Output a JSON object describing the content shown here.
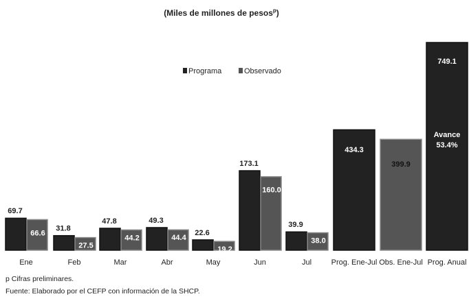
{
  "chart_data": {
    "type": "bar",
    "title": {
      "text": "(Miles de millones de pesos",
      "superscript": "p",
      "close": ")"
    },
    "categories": [
      "Ene",
      "Feb",
      "Mar",
      "Abr",
      "May",
      "Jun",
      "Jul",
      "Prog. Ene-Jul",
      "Obs. Ene-Jul",
      "Prog. Anual"
    ],
    "series": [
      {
        "name": "Programa",
        "color": "#222222",
        "values": [
          69.7,
          31.8,
          47.8,
          49.3,
          22.6,
          173.1,
          39.9,
          434.3,
          null,
          749.1
        ]
      },
      {
        "name": "Observado",
        "color": "#555555",
        "values": [
          66.6,
          27.5,
          44.2,
          44.4,
          19.2,
          160.0,
          38.0,
          null,
          399.9,
          null
        ]
      }
    ],
    "value_labels": [
      [
        "69.7",
        "31.8",
        "47.8",
        "49.3",
        "22.6",
        "173.1",
        "39.9",
        "434.3",
        null,
        "749.1"
      ],
      [
        "66.6",
        "27.5",
        "44.2",
        "44.4",
        "19.2",
        "160.0",
        "38.0",
        null,
        "399.9",
        null
      ]
    ],
    "annotations": [
      "Avance",
      "53.4%"
    ],
    "notes": [
      "p Cifras preliminares.",
      "Fuente: Elaborado por el CEFP con información de la SHCP."
    ]
  }
}
